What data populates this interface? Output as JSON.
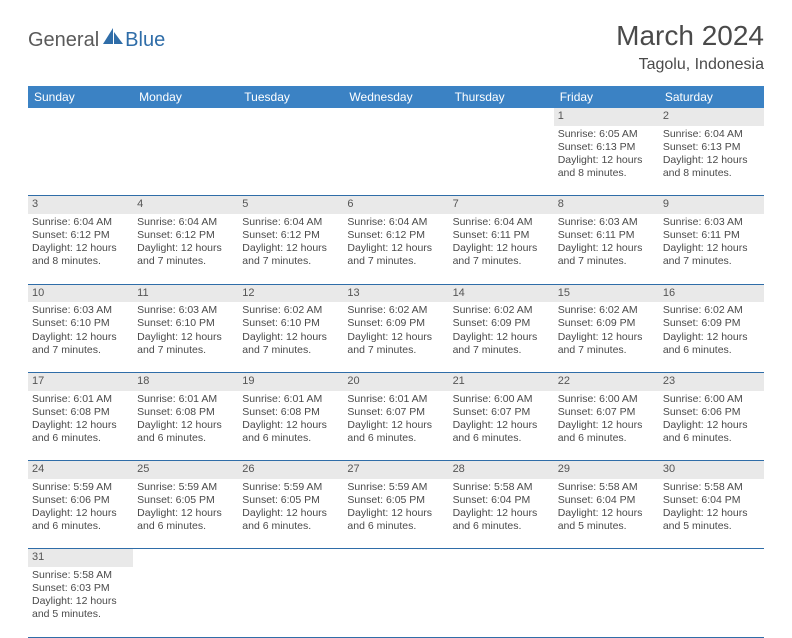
{
  "brand": {
    "part1": "General",
    "part2": "Blue"
  },
  "title": "March 2024",
  "location": "Tagolu, Indonesia",
  "colors": {
    "header_bg": "#3b82c4",
    "header_text": "#ffffff",
    "daynum_bg": "#e9e9e9",
    "border": "#2f6da8",
    "text": "#4a4a4a",
    "brand_gray": "#5a5a5a",
    "brand_blue": "#2f6da8"
  },
  "fonts": {
    "title_size": 28,
    "location_size": 16,
    "header_size": 12,
    "cell_size": 10.5
  },
  "day_headers": [
    "Sunday",
    "Monday",
    "Tuesday",
    "Wednesday",
    "Thursday",
    "Friday",
    "Saturday"
  ],
  "weeks": [
    [
      null,
      null,
      null,
      null,
      null,
      {
        "n": "1",
        "sr": "Sunrise: 6:05 AM",
        "ss": "Sunset: 6:13 PM",
        "d1": "Daylight: 12 hours",
        "d2": "and 8 minutes."
      },
      {
        "n": "2",
        "sr": "Sunrise: 6:04 AM",
        "ss": "Sunset: 6:13 PM",
        "d1": "Daylight: 12 hours",
        "d2": "and 8 minutes."
      }
    ],
    [
      {
        "n": "3",
        "sr": "Sunrise: 6:04 AM",
        "ss": "Sunset: 6:12 PM",
        "d1": "Daylight: 12 hours",
        "d2": "and 8 minutes."
      },
      {
        "n": "4",
        "sr": "Sunrise: 6:04 AM",
        "ss": "Sunset: 6:12 PM",
        "d1": "Daylight: 12 hours",
        "d2": "and 7 minutes."
      },
      {
        "n": "5",
        "sr": "Sunrise: 6:04 AM",
        "ss": "Sunset: 6:12 PM",
        "d1": "Daylight: 12 hours",
        "d2": "and 7 minutes."
      },
      {
        "n": "6",
        "sr": "Sunrise: 6:04 AM",
        "ss": "Sunset: 6:12 PM",
        "d1": "Daylight: 12 hours",
        "d2": "and 7 minutes."
      },
      {
        "n": "7",
        "sr": "Sunrise: 6:04 AM",
        "ss": "Sunset: 6:11 PM",
        "d1": "Daylight: 12 hours",
        "d2": "and 7 minutes."
      },
      {
        "n": "8",
        "sr": "Sunrise: 6:03 AM",
        "ss": "Sunset: 6:11 PM",
        "d1": "Daylight: 12 hours",
        "d2": "and 7 minutes."
      },
      {
        "n": "9",
        "sr": "Sunrise: 6:03 AM",
        "ss": "Sunset: 6:11 PM",
        "d1": "Daylight: 12 hours",
        "d2": "and 7 minutes."
      }
    ],
    [
      {
        "n": "10",
        "sr": "Sunrise: 6:03 AM",
        "ss": "Sunset: 6:10 PM",
        "d1": "Daylight: 12 hours",
        "d2": "and 7 minutes."
      },
      {
        "n": "11",
        "sr": "Sunrise: 6:03 AM",
        "ss": "Sunset: 6:10 PM",
        "d1": "Daylight: 12 hours",
        "d2": "and 7 minutes."
      },
      {
        "n": "12",
        "sr": "Sunrise: 6:02 AM",
        "ss": "Sunset: 6:10 PM",
        "d1": "Daylight: 12 hours",
        "d2": "and 7 minutes."
      },
      {
        "n": "13",
        "sr": "Sunrise: 6:02 AM",
        "ss": "Sunset: 6:09 PM",
        "d1": "Daylight: 12 hours",
        "d2": "and 7 minutes."
      },
      {
        "n": "14",
        "sr": "Sunrise: 6:02 AM",
        "ss": "Sunset: 6:09 PM",
        "d1": "Daylight: 12 hours",
        "d2": "and 7 minutes."
      },
      {
        "n": "15",
        "sr": "Sunrise: 6:02 AM",
        "ss": "Sunset: 6:09 PM",
        "d1": "Daylight: 12 hours",
        "d2": "and 7 minutes."
      },
      {
        "n": "16",
        "sr": "Sunrise: 6:02 AM",
        "ss": "Sunset: 6:09 PM",
        "d1": "Daylight: 12 hours",
        "d2": "and 6 minutes."
      }
    ],
    [
      {
        "n": "17",
        "sr": "Sunrise: 6:01 AM",
        "ss": "Sunset: 6:08 PM",
        "d1": "Daylight: 12 hours",
        "d2": "and 6 minutes."
      },
      {
        "n": "18",
        "sr": "Sunrise: 6:01 AM",
        "ss": "Sunset: 6:08 PM",
        "d1": "Daylight: 12 hours",
        "d2": "and 6 minutes."
      },
      {
        "n": "19",
        "sr": "Sunrise: 6:01 AM",
        "ss": "Sunset: 6:08 PM",
        "d1": "Daylight: 12 hours",
        "d2": "and 6 minutes."
      },
      {
        "n": "20",
        "sr": "Sunrise: 6:01 AM",
        "ss": "Sunset: 6:07 PM",
        "d1": "Daylight: 12 hours",
        "d2": "and 6 minutes."
      },
      {
        "n": "21",
        "sr": "Sunrise: 6:00 AM",
        "ss": "Sunset: 6:07 PM",
        "d1": "Daylight: 12 hours",
        "d2": "and 6 minutes."
      },
      {
        "n": "22",
        "sr": "Sunrise: 6:00 AM",
        "ss": "Sunset: 6:07 PM",
        "d1": "Daylight: 12 hours",
        "d2": "and 6 minutes."
      },
      {
        "n": "23",
        "sr": "Sunrise: 6:00 AM",
        "ss": "Sunset: 6:06 PM",
        "d1": "Daylight: 12 hours",
        "d2": "and 6 minutes."
      }
    ],
    [
      {
        "n": "24",
        "sr": "Sunrise: 5:59 AM",
        "ss": "Sunset: 6:06 PM",
        "d1": "Daylight: 12 hours",
        "d2": "and 6 minutes."
      },
      {
        "n": "25",
        "sr": "Sunrise: 5:59 AM",
        "ss": "Sunset: 6:05 PM",
        "d1": "Daylight: 12 hours",
        "d2": "and 6 minutes."
      },
      {
        "n": "26",
        "sr": "Sunrise: 5:59 AM",
        "ss": "Sunset: 6:05 PM",
        "d1": "Daylight: 12 hours",
        "d2": "and 6 minutes."
      },
      {
        "n": "27",
        "sr": "Sunrise: 5:59 AM",
        "ss": "Sunset: 6:05 PM",
        "d1": "Daylight: 12 hours",
        "d2": "and 6 minutes."
      },
      {
        "n": "28",
        "sr": "Sunrise: 5:58 AM",
        "ss": "Sunset: 6:04 PM",
        "d1": "Daylight: 12 hours",
        "d2": "and 6 minutes."
      },
      {
        "n": "29",
        "sr": "Sunrise: 5:58 AM",
        "ss": "Sunset: 6:04 PM",
        "d1": "Daylight: 12 hours",
        "d2": "and 5 minutes."
      },
      {
        "n": "30",
        "sr": "Sunrise: 5:58 AM",
        "ss": "Sunset: 6:04 PM",
        "d1": "Daylight: 12 hours",
        "d2": "and 5 minutes."
      }
    ],
    [
      {
        "n": "31",
        "sr": "Sunrise: 5:58 AM",
        "ss": "Sunset: 6:03 PM",
        "d1": "Daylight: 12 hours",
        "d2": "and 5 minutes."
      },
      null,
      null,
      null,
      null,
      null,
      null
    ]
  ]
}
